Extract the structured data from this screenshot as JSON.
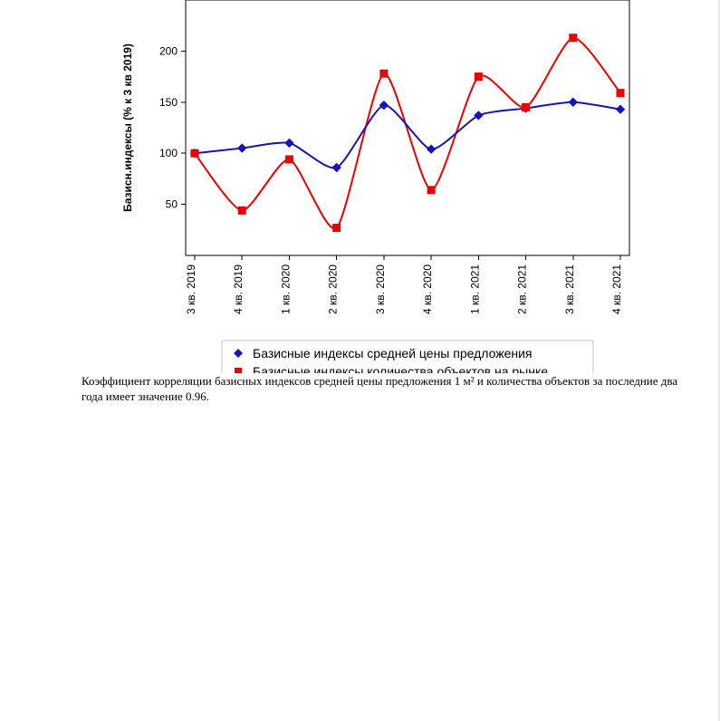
{
  "chart": {
    "type": "line",
    "background_color": "#ffffff",
    "axis_color": "#000000",
    "ylabel": "Базисн.индексы (% к 3 кв 2019)",
    "ylabel_fontsize": 12,
    "tick_fontsize": 12,
    "ylim": [
      0,
      250
    ],
    "yticks": [
      50,
      100,
      150,
      200
    ],
    "categories": [
      "3 кв. 2019",
      "4 кв. 2019",
      "1 кв. 2020",
      "2 кв. 2020",
      "3 кв. 2020",
      "4 кв. 2020",
      "1 кв. 2021",
      "2 кв. 2021",
      "3 кв. 2021",
      "4 кв. 2021"
    ],
    "series": [
      {
        "name": "Базисные индексы средней цены предложения",
        "color": "#1414b8",
        "marker": "diamond",
        "marker_size": 9,
        "line_width": 2,
        "fit": "cubic",
        "values": [
          100,
          105,
          110,
          86,
          147,
          104,
          137,
          144,
          150,
          143
        ]
      },
      {
        "name": "Базисные индексы количества объектов на рынке",
        "color": "#ee0000",
        "marker": "square",
        "marker_size": 8,
        "line_width": 2,
        "fit": "cubic",
        "values": [
          100,
          44,
          94,
          27,
          178,
          64,
          175,
          145,
          213,
          159
        ]
      }
    ],
    "legend": {
      "position": "bottom",
      "box_color": "#c6c6c6",
      "background": "#ffffff",
      "fontsize": 14
    }
  },
  "caption": "Коэффициент корреляции базисных индексов средней цены предложения 1 м² и количества объектов за последние два года имеет значение 0.96."
}
